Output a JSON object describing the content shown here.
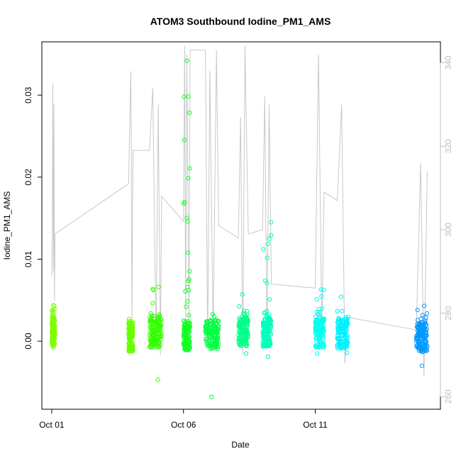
{
  "chart_data": {
    "type": "scatter",
    "title": "ATOM3 Southbound Iodine_PM1_AMS",
    "xlabel": "Date",
    "ylabel": "Iodine_PM1_AMS",
    "x_ticks": [
      "Oct 01",
      "Oct 06",
      "Oct 11"
    ],
    "y_ticks": [
      "0.00",
      "0.01",
      "0.02",
      "0.03"
    ],
    "y_right_ticks": [
      "260",
      "280",
      "300",
      "320",
      "340"
    ],
    "xlim": [
      "2016-09-30T15:00",
      "2016-10-15T18:00"
    ],
    "ylim": [
      -0.0083,
      0.0365
    ],
    "y_right_lim": [
      257,
      345
    ],
    "point_color_ramp": [
      "#7fff00",
      "#00ff00",
      "#00ffff",
      "#0099ff"
    ],
    "line_color": "#c8c8c8",
    "right_axis_color": "#bdbdbd",
    "point_clusters": [
      {
        "start": "2016-10-01T00:00",
        "end": "2016-10-01T03:00",
        "median": 0.0012,
        "min": -0.0008,
        "max": 0.0044,
        "color": "#7fff00"
      },
      {
        "start": "2016-10-03T22:00",
        "end": "2016-10-04T02:00",
        "median": 0.0005,
        "min": -0.0005,
        "max": 0.0027,
        "color": "#66ff00"
      },
      {
        "start": "2016-10-04T17:00",
        "end": "2016-10-05T04:00",
        "median": 0.001,
        "min": -0.0047,
        "max": 0.0066,
        "color": "#33ff00"
      },
      {
        "start": "2016-10-06T00:00",
        "end": "2016-10-06T06:00",
        "median": 0.0007,
        "min": -0.0007,
        "max": 0.0342,
        "color": "#11ff22"
      },
      {
        "start": "2016-10-06T20:00",
        "end": "2016-10-07T08:00",
        "median": 0.0008,
        "min": -0.0068,
        "max": 0.0033,
        "color": "#00ff44"
      },
      {
        "start": "2016-10-08T02:00",
        "end": "2016-10-08T11:00",
        "median": 0.0012,
        "min": -0.0015,
        "max": 0.0057,
        "color": "#00ff88"
      },
      {
        "start": "2016-10-09T00:00",
        "end": "2016-10-09T08:00",
        "median": 0.0011,
        "min": -0.0019,
        "max": 0.0145,
        "color": "#00ffbb"
      },
      {
        "start": "2016-10-11T00:00",
        "end": "2016-10-11T08:00",
        "median": 0.001,
        "min": -0.0015,
        "max": 0.0063,
        "color": "#00ffee"
      },
      {
        "start": "2016-10-11T20:00",
        "end": "2016-10-12T06:00",
        "median": 0.0009,
        "min": -0.0014,
        "max": 0.0054,
        "color": "#00f0ff"
      },
      {
        "start": "2016-10-14T20:00",
        "end": "2016-10-15T06:00",
        "median": 0.0005,
        "min": -0.003,
        "max": 0.0043,
        "color": "#0099ff"
      }
    ],
    "line_series": [
      [
        "2016-10-01T00:00",
        289
      ],
      [
        "2016-10-01T00:30",
        298
      ],
      [
        "2016-10-01T01:00",
        335
      ],
      [
        "2016-10-01T01:30",
        290
      ],
      [
        "2016-10-01T02:00",
        330
      ],
      [
        "2016-10-01T02:30",
        283
      ],
      [
        "2016-10-01T03:00",
        299
      ],
      [
        "2016-10-03T22:00",
        311
      ],
      [
        "2016-10-04T00:00",
        338
      ],
      [
        "2016-10-04T00:30",
        320
      ],
      [
        "2016-10-04T01:00",
        278
      ],
      [
        "2016-10-04T02:00",
        319
      ],
      [
        "2016-10-04T17:00",
        319
      ],
      [
        "2016-10-04T20:00",
        334
      ],
      [
        "2016-10-04T23:00",
        272
      ],
      [
        "2016-10-05T01:00",
        330
      ],
      [
        "2016-10-05T03:00",
        270
      ],
      [
        "2016-10-05T04:00",
        308
      ],
      [
        "2016-10-06T00:00",
        302
      ],
      [
        "2016-10-06T01:00",
        344
      ],
      [
        "2016-10-06T02:00",
        276
      ],
      [
        "2016-10-06T03:00",
        342
      ],
      [
        "2016-10-06T05:00",
        278
      ],
      [
        "2016-10-06T06:00",
        343
      ],
      [
        "2016-10-06T20:00",
        343
      ],
      [
        "2016-10-06T22:00",
        272
      ],
      [
        "2016-10-07T00:00",
        338
      ],
      [
        "2016-10-07T03:00",
        275
      ],
      [
        "2016-10-07T06:00",
        343
      ],
      [
        "2016-10-07T08:00",
        301
      ],
      [
        "2016-10-08T02:00",
        298
      ],
      [
        "2016-10-08T04:00",
        327
      ],
      [
        "2016-10-08T06:00",
        270
      ],
      [
        "2016-10-08T08:00",
        344
      ],
      [
        "2016-10-08T11:00",
        299
      ],
      [
        "2016-10-09T00:00",
        300
      ],
      [
        "2016-10-09T02:00",
        332
      ],
      [
        "2016-10-09T04:00",
        272
      ],
      [
        "2016-10-09T06:00",
        330
      ],
      [
        "2016-10-09T08:00",
        287
      ],
      [
        "2016-10-11T00:00",
        286
      ],
      [
        "2016-10-11T03:00",
        342
      ],
      [
        "2016-10-11T06:00",
        275
      ],
      [
        "2016-10-11T08:00",
        309
      ],
      [
        "2016-10-11T20:00",
        307
      ],
      [
        "2016-10-12T00:00",
        330
      ],
      [
        "2016-10-12T03:00",
        268
      ],
      [
        "2016-10-12T06:00",
        279
      ],
      [
        "2016-10-14T20:00",
        276
      ],
      [
        "2016-10-15T00:00",
        316
      ],
      [
        "2016-10-15T03:00",
        265
      ],
      [
        "2016-10-15T06:00",
        314
      ]
    ],
    "grid": false
  }
}
